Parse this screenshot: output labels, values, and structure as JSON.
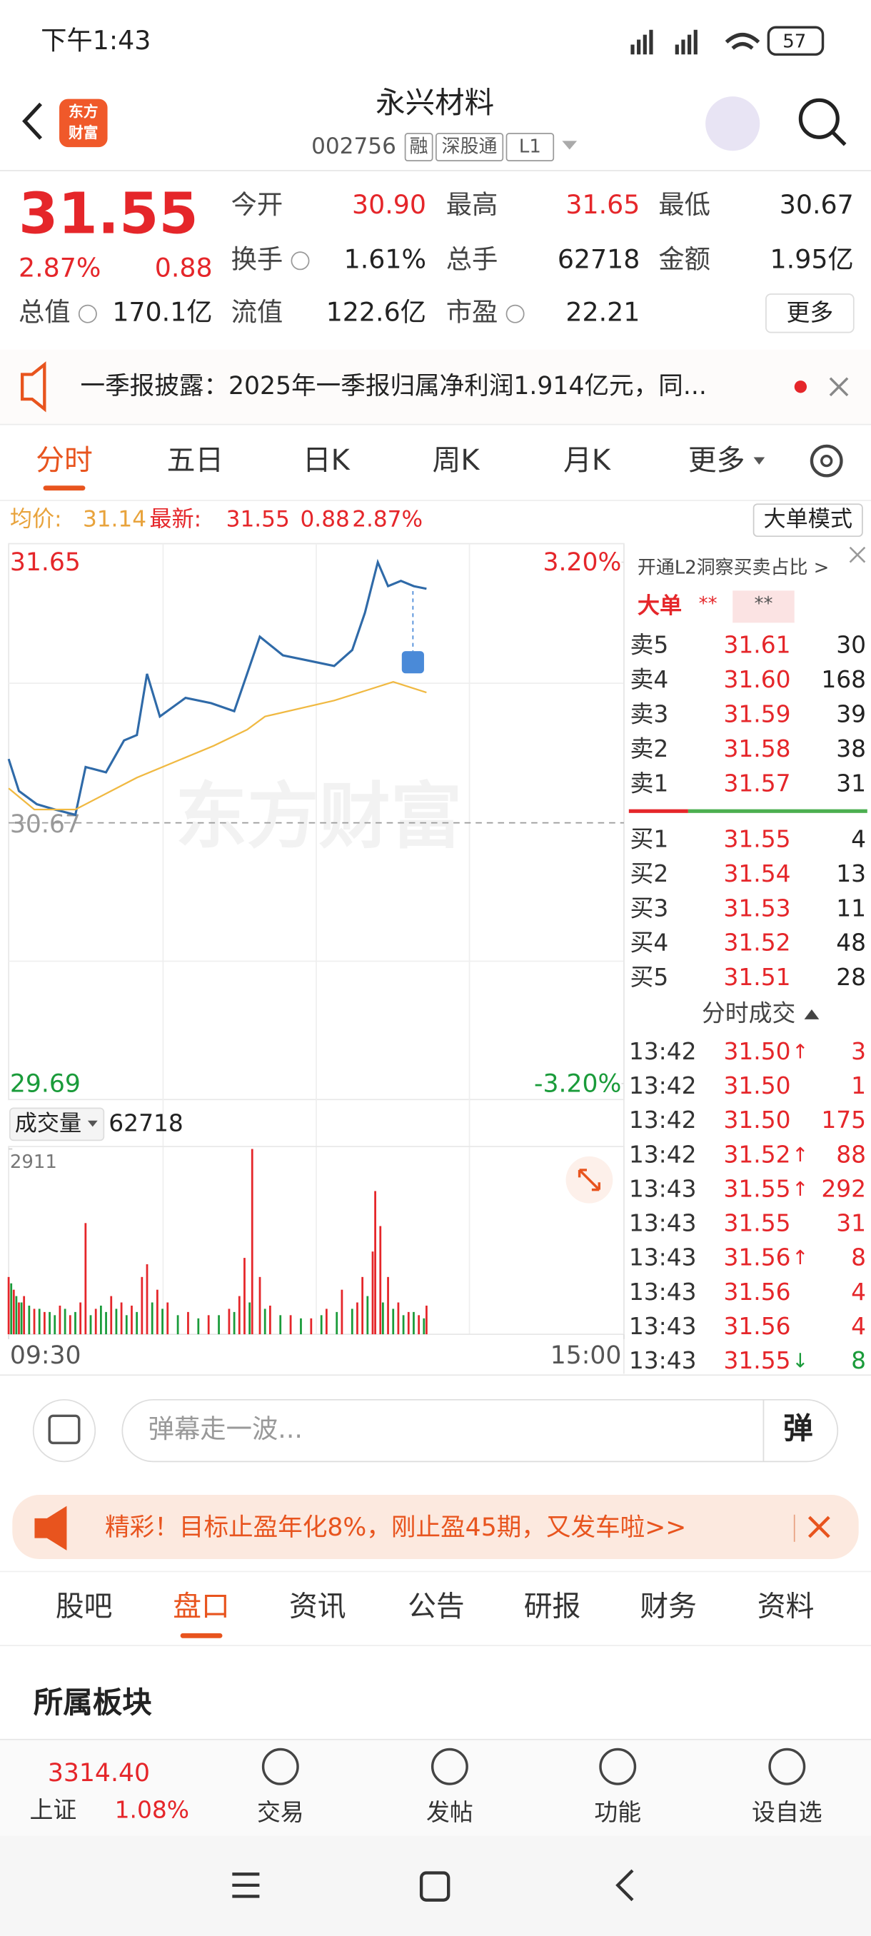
{
  "status_bar": {
    "time": "下午1:43",
    "battery": "57"
  },
  "header": {
    "logo": [
      "东方",
      "财富"
    ],
    "name": "永兴材料",
    "code": "002756",
    "tags": [
      "融",
      "深股通",
      "L1"
    ]
  },
  "quote": {
    "price": "31.55",
    "change_pct": "2.87%",
    "change": "0.88",
    "fields": [
      {
        "label": "今开",
        "value": "30.90",
        "color": "#e5262a"
      },
      {
        "label": "最高",
        "value": "31.65",
        "color": "#e5262a"
      },
      {
        "label": "最低",
        "value": "30.67",
        "color": "#222222"
      },
      {
        "label": "换手",
        "value": "1.61%",
        "color": "#222222"
      },
      {
        "label": "总手",
        "value": "62718",
        "color": "#222222"
      },
      {
        "label": "金额",
        "value": "1.95亿",
        "color": "#222222"
      },
      {
        "label": "总值",
        "value": "170.1亿",
        "color": "#222222"
      },
      {
        "label": "流值",
        "value": "122.6亿",
        "color": "#222222"
      },
      {
        "label": "市盈",
        "value": "22.21",
        "color": "#222222"
      }
    ],
    "more": "更多"
  },
  "notice": "一季报披露：2025年一季报归属净利润1.914亿元，同...",
  "chart_tabs": {
    "items": [
      "分时",
      "五日",
      "日K",
      "周K",
      "月K",
      "更多"
    ],
    "active": 0
  },
  "summary": {
    "avg_label": "均价:",
    "avg": "31.14",
    "latest_label": "最新:",
    "latest": "31.55",
    "change": "0.88",
    "change_pct": "2.87%",
    "mode": "大单模式"
  },
  "watermark": "东方财富",
  "chart_data": [
    {
      "type": "line",
      "xlim": [
        0,
        240
      ],
      "xticks": [
        {
          "value": 0,
          "label": "09:30"
        },
        {
          "value": 240,
          "label": "15:00"
        }
      ],
      "ylim": [
        29.69,
        31.65
      ],
      "yticks": [
        29.69,
        30.67,
        31.65
      ],
      "y2lim": [
        -3.2,
        3.2
      ],
      "y2ticks": [
        {
          "value": -3.2,
          "label": "-3.20%"
        },
        {
          "value": 3.2,
          "label": "3.20%"
        }
      ],
      "series": [
        {
          "color": "#2f6aa8",
          "x": [
            0,
            4,
            11,
            18,
            26,
            30,
            38,
            45,
            50,
            54,
            59,
            69,
            79,
            88,
            93,
            98,
            107,
            117,
            127,
            134,
            139,
            144,
            148,
            153,
            158,
            163
          ],
          "values": [
            30.91,
            30.79,
            30.74,
            30.72,
            30.7,
            30.88,
            30.86,
            30.98,
            31.0,
            31.23,
            31.07,
            31.14,
            31.12,
            31.09,
            31.23,
            31.37,
            31.3,
            31.28,
            31.26,
            31.32,
            31.46,
            31.65,
            31.56,
            31.58,
            31.56,
            31.55
          ]
        },
        {
          "color": "#f0b942",
          "x": [
            0,
            10,
            26,
            50,
            80,
            93,
            100,
            127,
            150,
            163
          ],
          "values": [
            30.8,
            30.72,
            30.72,
            30.84,
            30.96,
            31.02,
            31.07,
            31.13,
            31.2,
            31.16
          ]
        }
      ]
    },
    {
      "type": "bar",
      "label": "成交量",
      "total": 62718,
      "xlim": [
        0,
        240
      ],
      "ylim": [
        0,
        2911
      ],
      "yticks": [
        2911
      ],
      "series": [
        {
          "color": "#e5262a",
          "x": [
            0,
            2,
            4,
            6,
            10,
            14,
            20,
            24,
            28,
            30,
            34,
            40,
            44,
            48,
            52,
            54,
            58,
            62,
            70,
            78,
            86,
            90,
            92,
            95,
            98,
            102,
            110,
            118,
            124,
            130,
            136,
            138,
            142,
            143,
            145,
            148,
            152,
            156,
            160,
            163
          ],
          "values": [
            900,
            700,
            500,
            600,
            400,
            350,
            450,
            300,
            500,
            1747,
            400,
            600,
            500,
            450,
            900,
            1100,
            700,
            500,
            350,
            300,
            400,
            600,
            1200,
            2911,
            900,
            450,
            300,
            250,
            400,
            700,
            500,
            900,
            1300,
            2250,
            1700,
            900,
            500,
            350,
            300,
            450
          ]
        },
        {
          "color": "#1a9b3a",
          "x": [
            1,
            3,
            5,
            8,
            12,
            16,
            18,
            22,
            26,
            32,
            36,
            38,
            42,
            46,
            50,
            56,
            60,
            66,
            74,
            82,
            88,
            94,
            100,
            106,
            114,
            122,
            128,
            134,
            140,
            146,
            150,
            154,
            158,
            162
          ],
          "values": [
            800,
            600,
            500,
            450,
            400,
            350,
            300,
            400,
            350,
            300,
            450,
            350,
            400,
            300,
            350,
            500,
            400,
            300,
            250,
            300,
            350,
            500,
            400,
            300,
            250,
            300,
            350,
            400,
            600,
            500,
            400,
            300,
            350,
            250
          ]
        }
      ]
    }
  ],
  "order_book": {
    "promo": "开通L2洞察买卖占比 >",
    "big_order": {
      "label": "大单",
      "buy": "**",
      "sell": "**"
    },
    "asks": [
      [
        "卖5",
        "31.61",
        "30"
      ],
      [
        "卖4",
        "31.60",
        "168"
      ],
      [
        "卖3",
        "31.59",
        "39"
      ],
      [
        "卖2",
        "31.58",
        "38"
      ],
      [
        "卖1",
        "31.57",
        "31"
      ]
    ],
    "bids": [
      [
        "买1",
        "31.55",
        "4"
      ],
      [
        "买2",
        "31.54",
        "13"
      ],
      [
        "买3",
        "31.53",
        "11"
      ],
      [
        "买4",
        "31.52",
        "48"
      ],
      [
        "买5",
        "31.51",
        "28"
      ]
    ],
    "trades_title": "分时成交",
    "trades": [
      {
        "time": "13:42",
        "price": "31.50",
        "arrow": "↑",
        "arrow_color": "#e5262a",
        "volume": "3",
        "volume_color": "#e5262a"
      },
      {
        "time": "13:42",
        "price": "31.50",
        "arrow": null,
        "arrow_color": null,
        "volume": "1",
        "volume_color": "#e5262a"
      },
      {
        "time": "13:42",
        "price": "31.50",
        "arrow": null,
        "arrow_color": null,
        "volume": "175",
        "volume_color": "#e5262a"
      },
      {
        "time": "13:42",
        "price": "31.52",
        "arrow": "↑",
        "arrow_color": "#e5262a",
        "volume": "88",
        "volume_color": "#e5262a"
      },
      {
        "time": "13:43",
        "price": "31.55",
        "arrow": "↑",
        "arrow_color": "#e5262a",
        "volume": "292",
        "volume_color": "#e5262a"
      },
      {
        "time": "13:43",
        "price": "31.55",
        "arrow": null,
        "arrow_color": null,
        "volume": "31",
        "volume_color": "#e5262a"
      },
      {
        "time": "13:43",
        "price": "31.56",
        "arrow": "↑",
        "arrow_color": "#e5262a",
        "volume": "8",
        "volume_color": "#e5262a"
      },
      {
        "time": "13:43",
        "price": "31.56",
        "arrow": null,
        "arrow_color": null,
        "volume": "4",
        "volume_color": "#e5262a"
      },
      {
        "time": "13:43",
        "price": "31.56",
        "arrow": null,
        "arrow_color": null,
        "volume": "4",
        "volume_color": "#e5262a"
      },
      {
        "time": "13:43",
        "price": "31.55",
        "arrow": "↓",
        "arrow_color": "#1a9b3a",
        "volume": "8",
        "volume_color": "#1a9b3a"
      }
    ]
  },
  "comment": {
    "placeholder": "弹幕走一波...",
    "button": "弹"
  },
  "banner": "精彩！目标止盈年化8%，刚止盈45期，又发车啦>>",
  "section_tabs": {
    "items": [
      "股吧",
      "盘口",
      "资讯",
      "公告",
      "研报",
      "财务",
      "资料"
    ],
    "active": 1
  },
  "section_title": "所属板块",
  "bottom_nav": {
    "index": {
      "value": "3314.40",
      "name": "上证",
      "change": "1.08%"
    },
    "items": [
      "交易",
      "发帖",
      "功能",
      "设自选"
    ]
  }
}
